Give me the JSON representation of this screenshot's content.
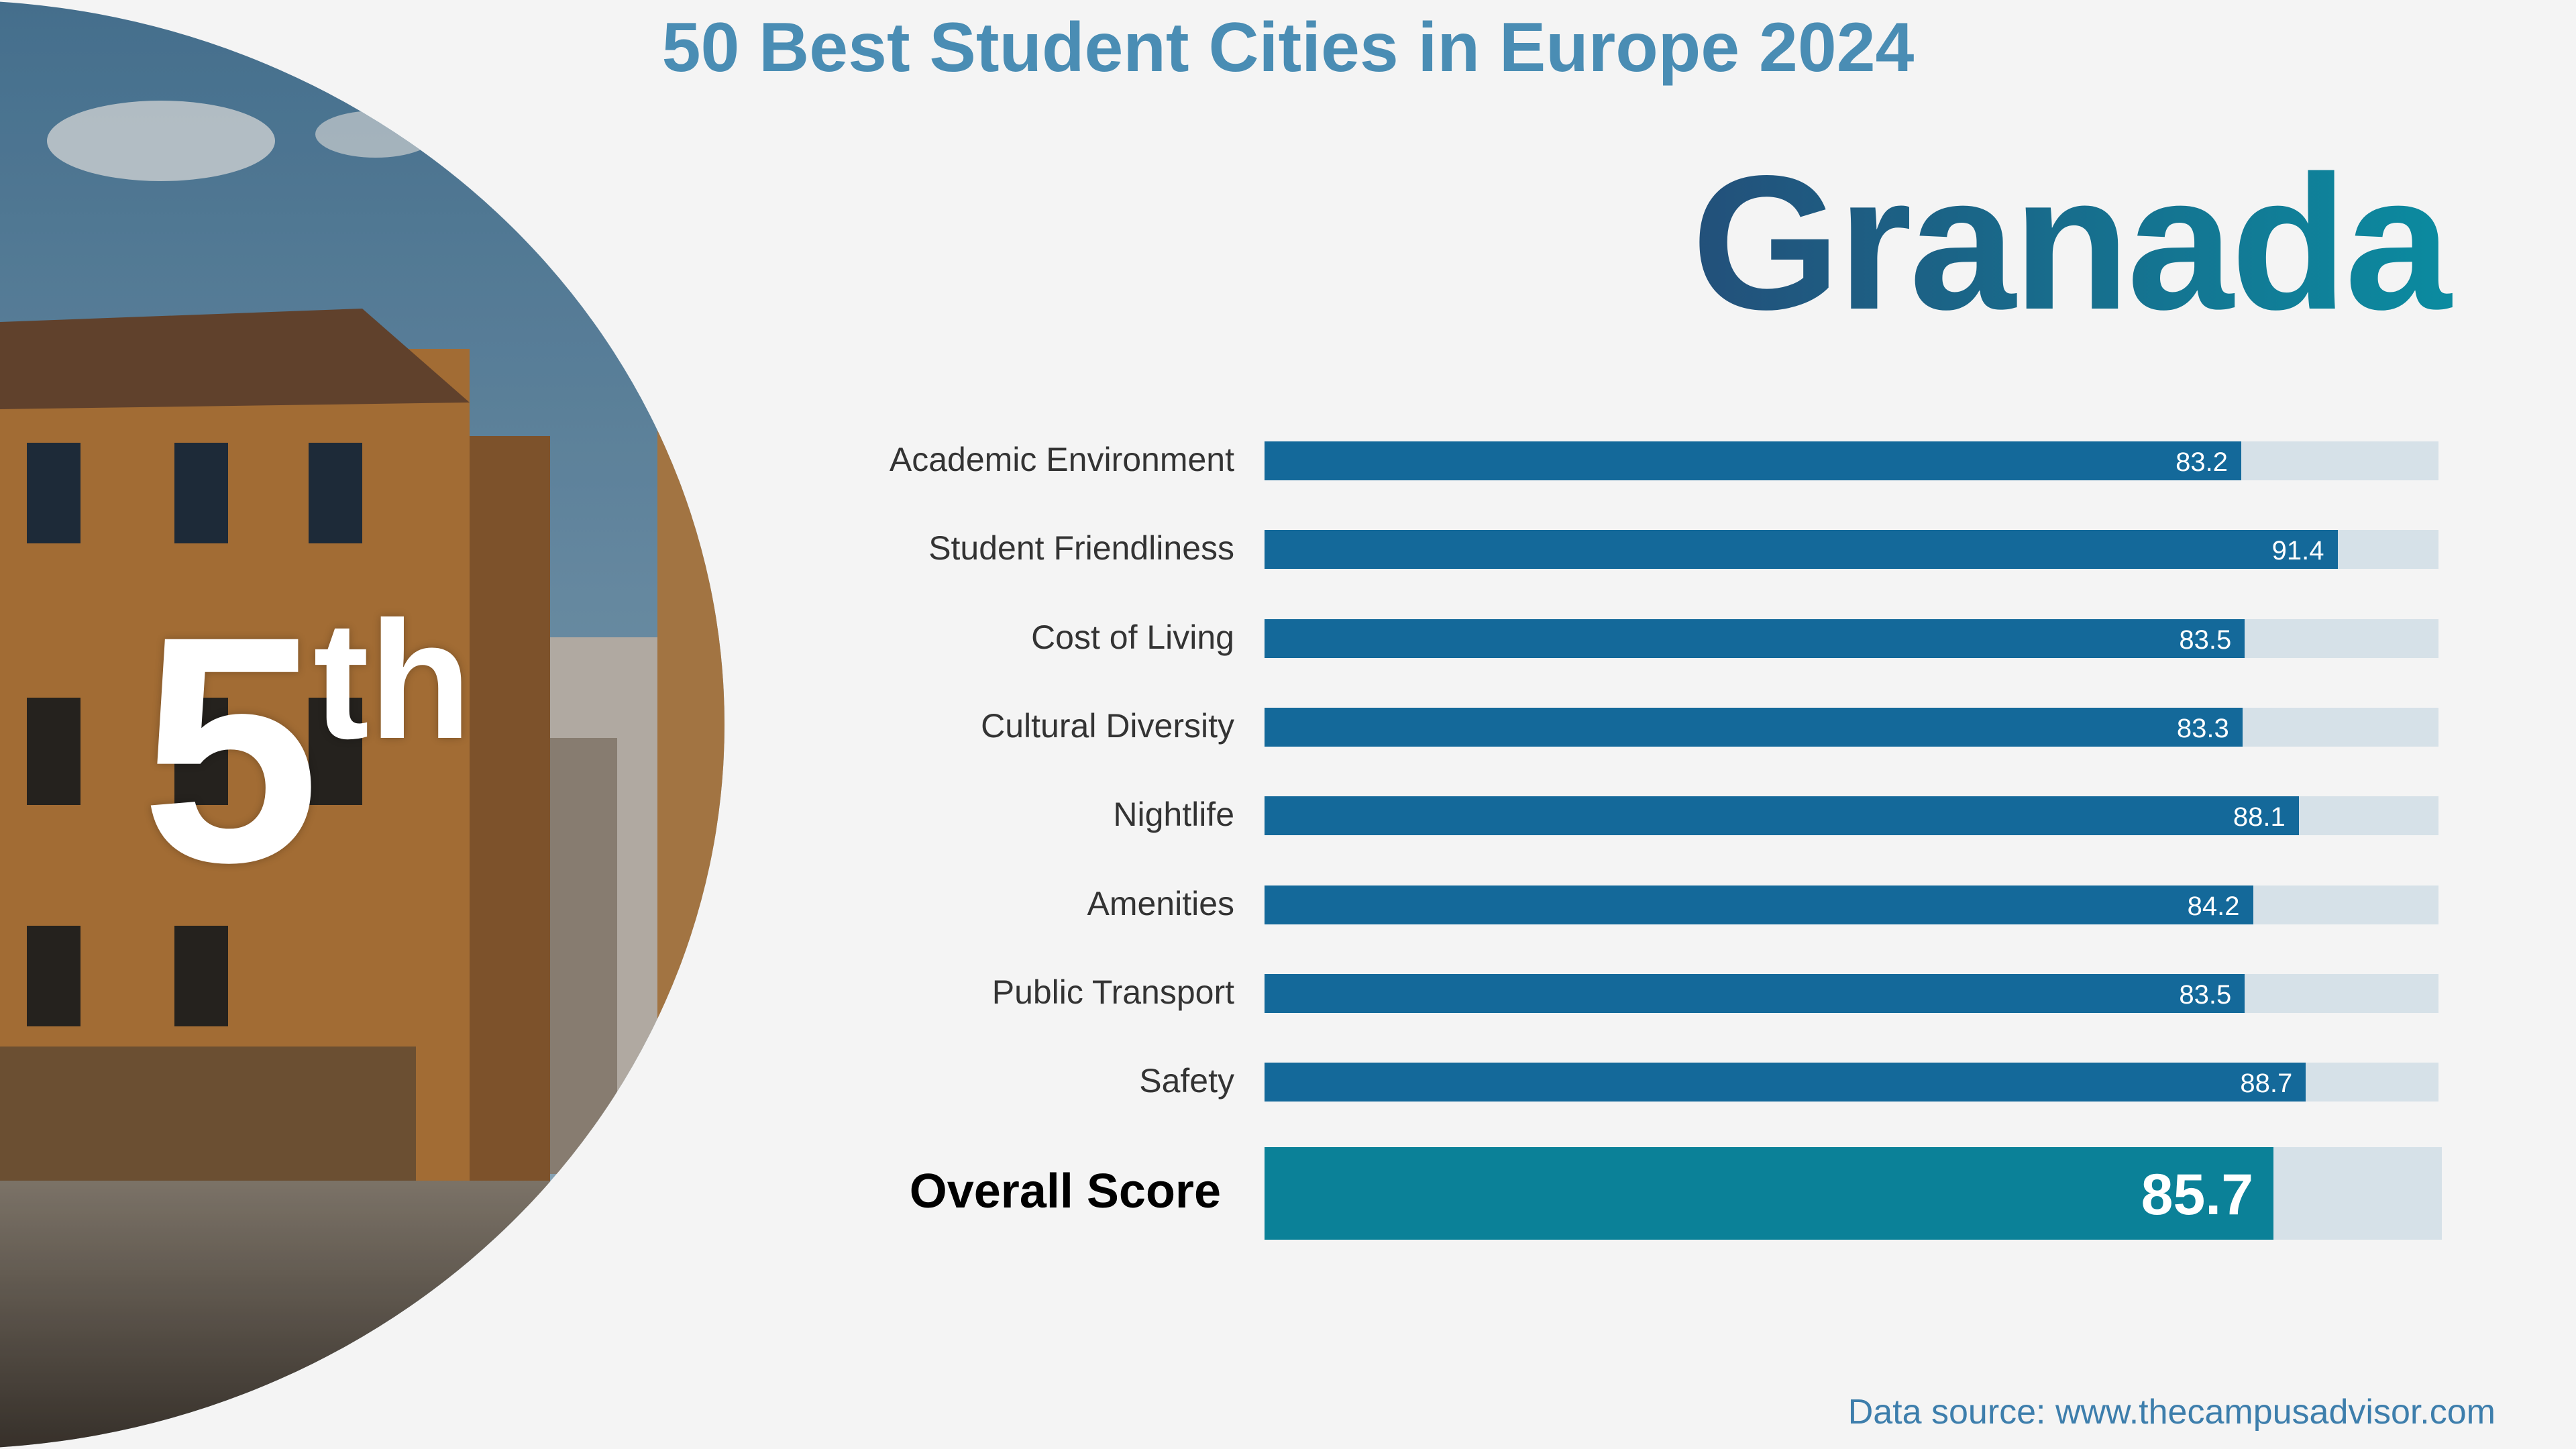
{
  "header": {
    "title": "50 Best Student Cities in Europe 2024"
  },
  "city": {
    "name": "Granada"
  },
  "rank": {
    "number": "5",
    "suffix": "th"
  },
  "chart_data": {
    "type": "bar",
    "orientation": "horizontal",
    "categories": [
      "Academic Environment",
      "Student Friendliness",
      "Cost of Living",
      "Cultural Diversity",
      "Nightlife",
      "Amenities",
      "Public Transport",
      "Safety"
    ],
    "values": [
      83.2,
      91.4,
      83.5,
      83.3,
      88.1,
      84.2,
      83.5,
      88.7
    ],
    "overall": {
      "label": "Overall Score",
      "value": 85.7
    },
    "xlim": [
      0,
      100
    ],
    "colors": {
      "bar": "#14699a",
      "overall": "#0b8198",
      "track": "#d6e1e8"
    }
  },
  "footer": {
    "source": "Data source: www.thecampusadvisor.com"
  }
}
